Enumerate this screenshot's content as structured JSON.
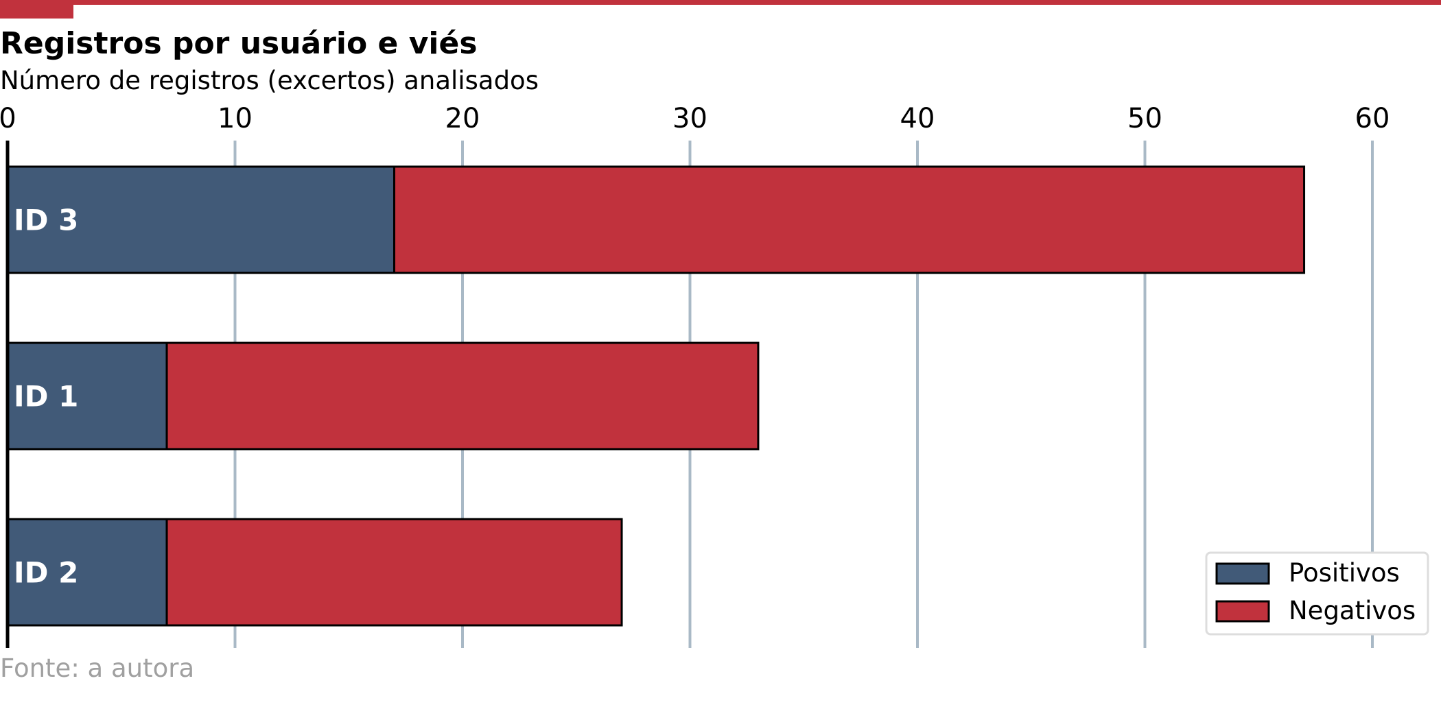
{
  "chart_data": {
    "type": "bar",
    "orientation": "horizontal",
    "stacked": true,
    "title": "Registros por usuário e viés",
    "subtitle": "Número de registros (excertos) analisados",
    "source": "Fonte: a autora",
    "categories": [
      "ID 3",
      "ID 1",
      "ID 2"
    ],
    "series": [
      {
        "name": "Positivos",
        "color": "#415a78",
        "values": [
          17,
          7,
          7
        ]
      },
      {
        "name": "Negativos",
        "color": "#c1323d",
        "values": [
          40,
          26,
          20
        ]
      }
    ],
    "xlim": [
      0,
      63
    ],
    "xticks": [
      0,
      10,
      20,
      30,
      40,
      50,
      60
    ],
    "xtick_position": "top",
    "grid": "vertical",
    "legend_position": "bottom-right",
    "colors": {
      "accent": "#c1323d",
      "grid": "#a9b9c6",
      "source": "#a0a0a0"
    }
  }
}
